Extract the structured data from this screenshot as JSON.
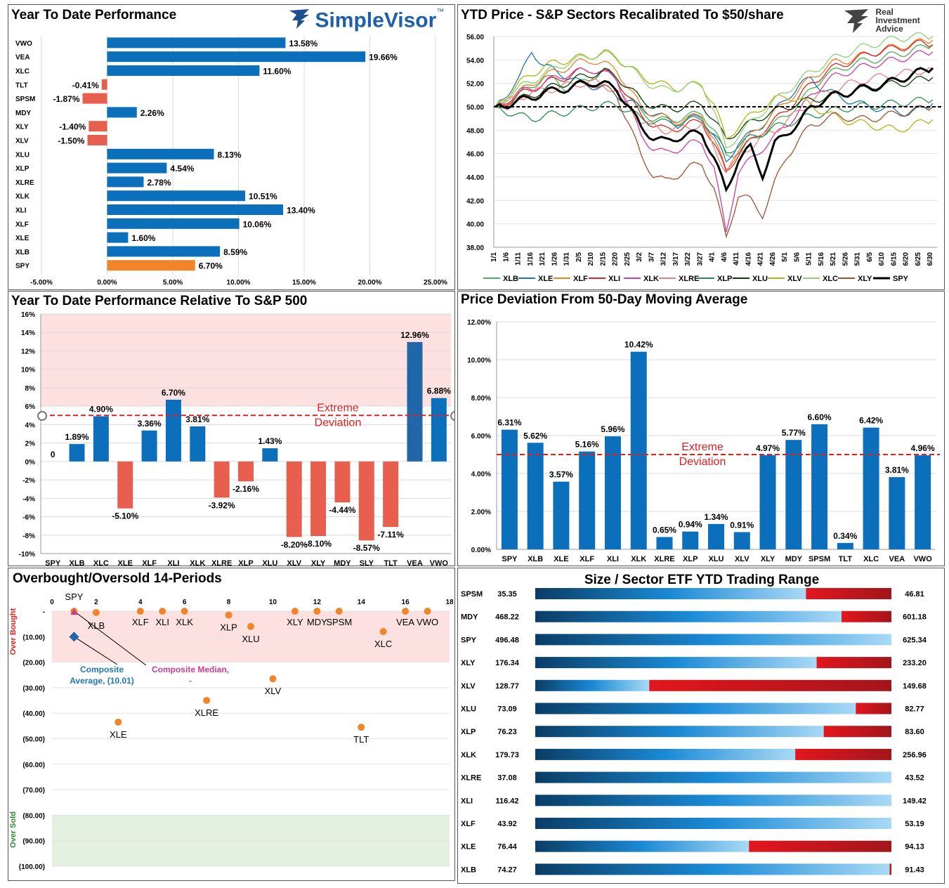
{
  "colors": {
    "blue": "#0b6fbb",
    "red": "#e8604d",
    "orange": "#f2852a",
    "dark_blue": "#2166a8",
    "pink_band": "#fde0e0",
    "green_band": "#e4f1e1"
  },
  "logos": {
    "simplevisor": "SimpleVisor",
    "simplevisor_tm": "™",
    "ria_line1": "Real",
    "ria_line2": "Investment",
    "ria_line3": "Advice"
  },
  "chart_data": [
    {
      "id": "ytd",
      "type": "bar",
      "orientation": "horizontal",
      "title": "Year To Date Performance",
      "categories": [
        "VWO",
        "VEA",
        "XLC",
        "TLT",
        "SPSM",
        "MDY",
        "XLY",
        "XLV",
        "XLU",
        "XLP",
        "XLRE",
        "XLK",
        "XLI",
        "XLF",
        "XLE",
        "XLB",
        "SPY"
      ],
      "values": [
        13.58,
        19.66,
        11.6,
        -0.41,
        -1.87,
        2.26,
        -1.4,
        -1.5,
        8.13,
        4.54,
        2.78,
        10.51,
        13.4,
        10.06,
        1.6,
        8.59,
        6.7
      ],
      "labels": [
        "13.58%",
        "19.66%",
        "11.60%",
        "-0.41%",
        "-1.87%",
        "2.26%",
        "-1.40%",
        "-1.50%",
        "8.13%",
        "4.54%",
        "2.78%",
        "10.51%",
        "13.40%",
        "10.06%",
        "1.60%",
        "8.59%",
        "6.70%"
      ],
      "highlight": "SPY",
      "xlim": [
        -5,
        25
      ],
      "xticks": [
        "-5.00%",
        "0.00%",
        "5.00%",
        "10.00%",
        "15.00%",
        "20.00%",
        "25.00%"
      ]
    },
    {
      "id": "price",
      "type": "line",
      "title": "YTD Price - S&P Sectors Recalibrated To $50/share",
      "ylim": [
        38,
        56
      ],
      "yticks": [
        "38.00",
        "40.00",
        "42.00",
        "44.00",
        "46.00",
        "48.00",
        "50.00",
        "52.00",
        "54.00",
        "56.00"
      ],
      "xticks": [
        "1/1",
        "1/6",
        "1/11",
        "1/16",
        "1/21",
        "1/26",
        "1/31",
        "2/5",
        "2/10",
        "2/15",
        "2/20",
        "2/25",
        "3/2",
        "3/7",
        "3/12",
        "3/17",
        "3/22",
        "3/27",
        "4/1",
        "4/6",
        "4/11",
        "4/16",
        "4/21",
        "4/26",
        "5/1",
        "5/6",
        "5/11",
        "5/16",
        "5/21",
        "5/26",
        "5/31",
        "6/5",
        "6/10",
        "6/15",
        "6/20",
        "6/25",
        "6/30"
      ],
      "reference_line": 50,
      "series": [
        {
          "name": "XLB",
          "color": "#4caf50",
          "values": [
            50,
            50.2,
            51,
            51.8,
            52.5,
            52.2,
            51.5,
            52,
            52.6,
            53,
            52.4,
            50.8,
            49.6,
            49,
            48.8,
            49,
            49.2,
            49.5,
            48,
            45.8,
            46.2,
            47,
            47.8,
            48.5,
            49.4,
            50.2,
            51.5,
            52.6,
            53,
            53.5,
            53.8,
            54,
            54.2,
            54.5,
            54.7,
            55,
            55.3
          ]
        },
        {
          "name": "XLE",
          "color": "#1f77b4",
          "values": [
            50,
            51.2,
            52.4,
            54.8,
            53.5,
            53,
            52.6,
            52,
            51.8,
            51.6,
            51,
            50.5,
            49.8,
            49.5,
            49,
            48.5,
            48.9,
            49.2,
            47.5,
            45.2,
            47,
            47.6,
            48.5,
            49.6,
            50.8,
            51.8,
            52.4,
            51.5,
            51,
            50.6,
            50.2,
            50,
            49.8,
            49.6,
            49.5,
            49.7,
            50.3
          ]
        },
        {
          "name": "XLF",
          "color": "#e8832a",
          "values": [
            50,
            50.5,
            51.2,
            52,
            52.6,
            53,
            53.4,
            53.8,
            54,
            53.6,
            53.2,
            51.5,
            50,
            49.4,
            49,
            48.8,
            49,
            49.3,
            47.2,
            44.5,
            46.4,
            47.5,
            48.6,
            49.5,
            50.5,
            51.4,
            52.5,
            53.2,
            53.8,
            54,
            54.3,
            54.6,
            54.9,
            55.1,
            55.3,
            55.5,
            55.7
          ]
        },
        {
          "name": "XLI",
          "color": "#d62728",
          "values": [
            50,
            50.4,
            51,
            51.5,
            52,
            52.3,
            52.6,
            53,
            53.2,
            52.9,
            52.4,
            50.8,
            49.2,
            48.5,
            48,
            48.2,
            48.5,
            48.8,
            46.8,
            44.4,
            46,
            47,
            48,
            48.8,
            49.8,
            50.8,
            52,
            52.8,
            53.4,
            53.8,
            54.2,
            54.6,
            54.8,
            55,
            55.2,
            55.4,
            55.3
          ]
        },
        {
          "name": "XLK",
          "color": "#cc3fa4",
          "values": [
            50,
            50.6,
            51.2,
            51.6,
            52,
            52.5,
            52.8,
            53,
            53.2,
            52.8,
            52.4,
            50,
            47.5,
            46.5,
            46,
            46.4,
            46.8,
            47,
            44.8,
            39.2,
            44.5,
            45.4,
            46.5,
            47.4,
            48.5,
            49.6,
            51,
            52,
            52.6,
            53,
            53.3,
            53.6,
            53.8,
            54,
            54.3,
            54.5,
            54.7
          ]
        },
        {
          "name": "XLRE",
          "color": "#f08080",
          "values": [
            50,
            50.4,
            50.8,
            51.2,
            51.4,
            51.6,
            51.8,
            52,
            52.1,
            51.8,
            51.4,
            50,
            48.8,
            48.3,
            48,
            48.1,
            48.3,
            48.5,
            46.4,
            44.6,
            45.8,
            46.6,
            47.4,
            48,
            48.8,
            49.6,
            50.5,
            51.1,
            51.5,
            51.9,
            52.2,
            52.4,
            52.6,
            52.8,
            52.9,
            53.1,
            53.3
          ]
        },
        {
          "name": "XLP",
          "color": "#2e8b57",
          "values": [
            50,
            49.6,
            49.2,
            49,
            49.2,
            49.4,
            49.6,
            49.8,
            50,
            50.1,
            50.2,
            49.6,
            49,
            48.8,
            48.6,
            48.7,
            48.8,
            49,
            47.6,
            46,
            46.8,
            47.3,
            47.8,
            48.2,
            48.6,
            48.9,
            49.2,
            49.5,
            49.7,
            49.9,
            50,
            50.1,
            50.2,
            50.3,
            50.4,
            50.5,
            50.6
          ]
        },
        {
          "name": "XLU",
          "color": "#0b3d0b",
          "values": [
            50,
            50.2,
            50.6,
            51,
            51.4,
            51.8,
            52.1,
            52.5,
            52.8,
            53,
            52.6,
            51.6,
            50.6,
            50.1,
            49.8,
            49.9,
            50.1,
            50.3,
            48.8,
            47.2,
            48,
            48.6,
            49.2,
            49.6,
            50,
            50.3,
            50.6,
            50.8,
            51,
            51.2,
            51.4,
            51.6,
            51.8,
            52,
            52.1,
            52.3,
            52.5
          ]
        },
        {
          "name": "XLV",
          "color": "#b5b31a",
          "values": [
            50,
            51,
            52,
            52.8,
            53.4,
            53.8,
            54,
            54.2,
            54.4,
            54.5,
            54.2,
            53.4,
            52.6,
            52.2,
            51.8,
            51.6,
            51.8,
            51.9,
            50.2,
            47.2,
            48.4,
            49.2,
            50,
            50.6,
            50.9,
            50.6,
            50.1,
            49.6,
            49.1,
            48.8,
            48.6,
            48.4,
            48.2,
            48,
            48.3,
            48.6,
            48.9
          ]
        },
        {
          "name": "XLC",
          "color": "#8fd175",
          "values": [
            50,
            50.8,
            51.6,
            52.2,
            52.8,
            53.3,
            53.8,
            54.1,
            54.4,
            54.6,
            54.3,
            53.4,
            52.4,
            51.8,
            51.4,
            51.6,
            51.8,
            52,
            49.6,
            46.4,
            47.6,
            48.6,
            49.6,
            50.5,
            51.4,
            52.2,
            53,
            53.6,
            54.2,
            54.6,
            55,
            55.3,
            55.6,
            55.8,
            56,
            56,
            56
          ]
        },
        {
          "name": "XLY",
          "color": "#a0522d",
          "values": [
            50,
            50.2,
            50.4,
            50.8,
            51.2,
            51.4,
            51.6,
            51.8,
            52,
            51.6,
            51,
            48.5,
            45.8,
            44.2,
            43.6,
            44.2,
            44.8,
            45.2,
            43,
            38.8,
            42.5,
            42,
            40.8,
            43.5,
            45.8,
            47.2,
            48.4,
            48.9,
            49.2,
            49.1,
            48.9,
            49,
            49.2,
            49.4,
            49.6,
            49.8,
            50
          ]
        },
        {
          "name": "SPY",
          "color": "#000000",
          "width": 3,
          "values": [
            50,
            50.2,
            50.5,
            50.8,
            51.2,
            51.4,
            51.6,
            51.9,
            52.1,
            51.9,
            51.5,
            50,
            48.2,
            47.4,
            47,
            47.4,
            47.6,
            47.8,
            45.6,
            42.8,
            45.5,
            46.5,
            44.2,
            46.8,
            47.8,
            48.6,
            50,
            50.6,
            51,
            51.2,
            51.5,
            51.7,
            51.9,
            52.3,
            52.6,
            53,
            53.3
          ]
        }
      ]
    },
    {
      "id": "relative",
      "type": "bar",
      "title": "Year To Date Performance Relative To S&P 500",
      "categories": [
        "SPY",
        "XLB",
        "XLC",
        "XLE",
        "XLF",
        "XLI",
        "XLK",
        "XLRE",
        "XLP",
        "XLU",
        "XLV",
        "XLY",
        "MDY",
        "SLY",
        "TLT",
        "VEA",
        "VWO"
      ],
      "values": [
        0,
        1.89,
        4.9,
        -5.1,
        3.36,
        6.7,
        3.81,
        -3.92,
        -2.16,
        1.43,
        -8.2,
        -8.1,
        -4.44,
        -8.57,
        -7.11,
        12.96,
        6.88
      ],
      "labels": [
        "0",
        "1.89%",
        "4.90%",
        "-5.10%",
        "3.36%",
        "6.70%",
        "3.81%",
        "-3.92%",
        "-2.16%",
        "1.43%",
        "-8.20%",
        "-8.10%",
        "-4.44%",
        "-8.57%",
        "-7.11%",
        "12.96%",
        "6.88%"
      ],
      "ylim": [
        -10,
        16
      ],
      "yticks": [
        "-10%",
        "-8%",
        "-6%",
        "-4%",
        "-2%",
        "0%",
        "2%",
        "4%",
        "6%",
        "8%",
        "10%",
        "12%",
        "14%",
        "16%"
      ],
      "threshold": 5,
      "threshold_label_1": "Extreme",
      "threshold_label_2": "Deviation"
    },
    {
      "id": "deviation",
      "type": "bar",
      "title": "Price Deviation From 50-Day Moving Average",
      "categories": [
        "SPY",
        "XLB",
        "XLE",
        "XLF",
        "XLI",
        "XLK",
        "XLRE",
        "XLP",
        "XLU",
        "XLV",
        "XLY",
        "MDY",
        "SPSM",
        "TLT",
        "XLC",
        "VEA",
        "VWO"
      ],
      "values": [
        6.31,
        5.62,
        3.57,
        5.16,
        5.96,
        10.42,
        0.65,
        0.94,
        1.34,
        0.91,
        4.97,
        5.77,
        6.6,
        0.34,
        6.42,
        3.81,
        4.96
      ],
      "labels": [
        "6.31%",
        "5.62%",
        "3.57%",
        "5.16%",
        "5.96%",
        "10.42%",
        "0.65%",
        "0.94%",
        "1.34%",
        "0.91%",
        "4.97%",
        "5.77%",
        "6.60%",
        "0.34%",
        "6.42%",
        "3.81%",
        "4.96%"
      ],
      "ylim": [
        0,
        12
      ],
      "yticks": [
        "0.00%",
        "2.00%",
        "4.00%",
        "6.00%",
        "8.00%",
        "10.00%",
        "12.00%"
      ],
      "threshold": 5,
      "threshold_label_1": "Extreme",
      "threshold_label_2": "Deviation"
    },
    {
      "id": "obos",
      "type": "scatter",
      "title": "Overbought/Oversold 14-Periods",
      "xlim": [
        0,
        18
      ],
      "xticks": [
        "0",
        "2",
        "4",
        "6",
        "8",
        "10",
        "12",
        "14",
        "16",
        "18"
      ],
      "ylim": [
        -100,
        0
      ],
      "yticks": [
        "-",
        "(10.00)",
        "(20.00)",
        "(30.00)",
        "(40.00)",
        "(50.00)",
        "(60.00)",
        "(70.00)",
        "(80.00)",
        "(90.00)",
        "(100.00)"
      ],
      "overbought_label": "Over Bought",
      "oversold_label": "Over Sold",
      "points": [
        {
          "label": "SPY",
          "x": 1,
          "y": 0
        },
        {
          "label": "XLB",
          "x": 2,
          "y": -0.5
        },
        {
          "label": "XLE",
          "x": 3,
          "y": -43.5
        },
        {
          "label": "XLF",
          "x": 4,
          "y": 0
        },
        {
          "label": "XLI",
          "x": 5,
          "y": 0
        },
        {
          "label": "XLK",
          "x": 6,
          "y": 0
        },
        {
          "label": "XLRE",
          "x": 7,
          "y": -35
        },
        {
          "label": "XLP",
          "x": 8,
          "y": -1.5
        },
        {
          "label": "XLU",
          "x": 9,
          "y": -6
        },
        {
          "label": "XLV",
          "x": 10,
          "y": -26.5
        },
        {
          "label": "XLY",
          "x": 11,
          "y": 0
        },
        {
          "label": "MDY",
          "x": 12,
          "y": 0
        },
        {
          "label": "SPSM",
          "x": 13,
          "y": 0
        },
        {
          "label": "TLT",
          "x": 14,
          "y": -45.5
        },
        {
          "label": "XLC",
          "x": 15,
          "y": -8
        },
        {
          "label": "VEA",
          "x": 16,
          "y": 0
        },
        {
          "label": "VWO",
          "x": 17,
          "y": 0
        }
      ],
      "composite_average": {
        "x": 1,
        "y": -10.01,
        "label_1": "Composite",
        "label_2": "Average,  (10.01)"
      },
      "composite_median": {
        "x": 1,
        "y": 0,
        "label_1": "Composite Median,",
        "label_2": "-"
      }
    },
    {
      "id": "range",
      "type": "bar",
      "orientation": "horizontal",
      "title": "Size / Sector ETF YTD Trading Range",
      "rows": [
        {
          "name": "SPSM",
          "low": "35.35",
          "high": "46.81",
          "pos": 0.76
        },
        {
          "name": "MDY",
          "low": "468.22",
          "high": "601.18",
          "pos": 0.86
        },
        {
          "name": "SPY",
          "low": "496.48",
          "high": "625.34",
          "pos": 1.0
        },
        {
          "name": "XLY",
          "low": "176.34",
          "high": "233.20",
          "pos": 0.79
        },
        {
          "name": "XLV",
          "low": "128.77",
          "high": "149.68",
          "pos": 0.32
        },
        {
          "name": "XLU",
          "low": "73.09",
          "high": "82.77",
          "pos": 0.9
        },
        {
          "name": "XLP",
          "low": "76.23",
          "high": "83.60",
          "pos": 0.81
        },
        {
          "name": "XLK",
          "low": "179.73",
          "high": "256.96",
          "pos": 0.73
        },
        {
          "name": "XLRE",
          "low": "37.08",
          "high": "43.52",
          "pos": 1.0
        },
        {
          "name": "XLI",
          "low": "116.42",
          "high": "149.42",
          "pos": 1.0
        },
        {
          "name": "XLF",
          "low": "43.92",
          "high": "53.19",
          "pos": 1.0
        },
        {
          "name": "XLE",
          "low": "76.44",
          "high": "94.13",
          "pos": 0.6
        },
        {
          "name": "XLB",
          "low": "74.27",
          "high": "91.43",
          "pos": 0.995
        }
      ]
    }
  ]
}
